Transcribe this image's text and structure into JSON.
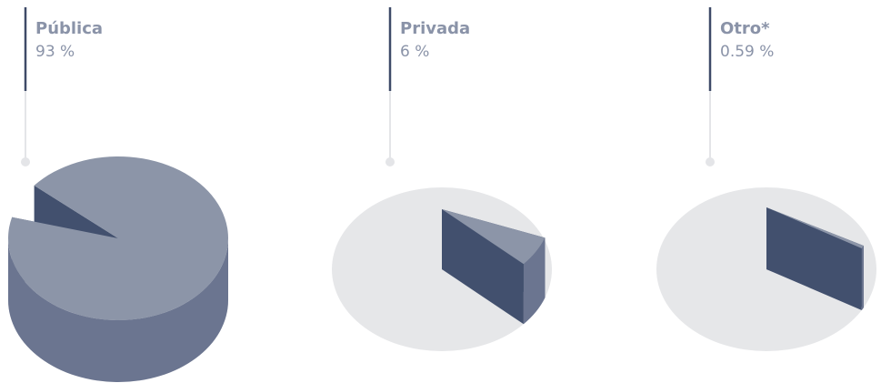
{
  "chart_data": [
    {
      "type": "pie",
      "categories": [
        "Pública"
      ],
      "values": [
        93
      ],
      "value_labels": [
        "93 %"
      ]
    },
    {
      "type": "pie",
      "categories": [
        "Privada"
      ],
      "values": [
        6
      ],
      "value_labels": [
        "6 %"
      ]
    },
    {
      "type": "pie",
      "categories": [
        "Otro*"
      ],
      "values": [
        0.59
      ],
      "value_labels": [
        "0.59 %"
      ]
    }
  ]
}
